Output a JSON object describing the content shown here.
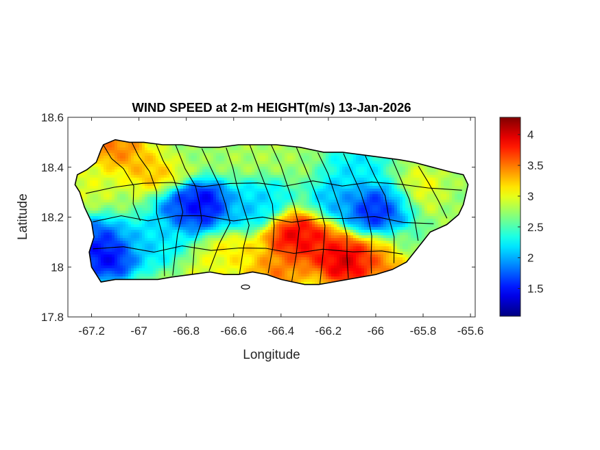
{
  "title": "WIND SPEED at 2-m HEIGHT(m/s) 13-Jan-2026",
  "xlabel": "Longitude",
  "ylabel": "Latitude",
  "xlim": [
    -67.3,
    -65.58
  ],
  "ylim": [
    17.8,
    18.6
  ],
  "x_ticks": [
    "-67.2",
    "-67",
    "-66.8",
    "-66.6",
    "-66.4",
    "-66.2",
    "-66",
    "-65.8",
    "-65.6"
  ],
  "x_tick_values": [
    -67.2,
    -67.0,
    -66.8,
    -66.6,
    -66.4,
    -66.2,
    -66.0,
    -65.8,
    -65.6
  ],
  "y_ticks": [
    "18.6",
    "18.4",
    "18.2",
    "18",
    "17.8"
  ],
  "y_tick_values": [
    18.6,
    18.4,
    18.2,
    18.0,
    17.8
  ],
  "colorbar": {
    "colormap": "jet",
    "range": [
      1.05,
      4.28
    ],
    "ticks": [
      "4",
      "3.5",
      "3",
      "2.5",
      "2",
      "1.5"
    ],
    "tick_values": [
      4.0,
      3.5,
      3.0,
      2.5,
      2.0,
      1.5
    ]
  },
  "chart_data": {
    "type": "heatmap",
    "title": "WIND SPEED at 2-m HEIGHT(m/s) 13-Jan-2026",
    "xlabel": "Longitude",
    "ylabel": "Latitude",
    "xlim": [
      -67.3,
      -65.58
    ],
    "ylim": [
      17.8,
      18.6
    ],
    "grid": false,
    "baseline_value": 2.75,
    "features": [
      {
        "lon": -67.13,
        "lat": 18.04,
        "value": 1.2
      },
      {
        "lon": -67.18,
        "lat": 18.1,
        "value": 1.5
      },
      {
        "lon": -66.98,
        "lat": 18.1,
        "value": 2.0
      },
      {
        "lon": -66.73,
        "lat": 18.25,
        "value": 1.15
      },
      {
        "lon": -66.8,
        "lat": 18.22,
        "value": 1.6
      },
      {
        "lon": -66.55,
        "lat": 18.22,
        "value": 2.0
      },
      {
        "lon": -66.48,
        "lat": 18.27,
        "value": 2.1
      },
      {
        "lon": -66.0,
        "lat": 18.23,
        "value": 1.3
      },
      {
        "lon": -65.92,
        "lat": 18.24,
        "value": 1.6
      },
      {
        "lon": -66.15,
        "lat": 18.27,
        "value": 1.9
      },
      {
        "lon": -66.08,
        "lat": 18.4,
        "value": 2.1
      },
      {
        "lon": -66.35,
        "lat": 18.13,
        "value": 4.1
      },
      {
        "lon": -66.26,
        "lat": 18.09,
        "value": 3.9
      },
      {
        "lon": -66.12,
        "lat": 18.02,
        "value": 4.25
      },
      {
        "lon": -65.98,
        "lat": 18.02,
        "value": 3.6
      },
      {
        "lon": -66.42,
        "lat": 17.98,
        "value": 3.6
      },
      {
        "lon": -66.58,
        "lat": 18.06,
        "value": 3.2
      },
      {
        "lon": -66.68,
        "lat": 18.0,
        "value": 3.0
      },
      {
        "lon": -67.1,
        "lat": 18.48,
        "value": 3.6
      },
      {
        "lon": -66.93,
        "lat": 18.4,
        "value": 3.4
      },
      {
        "lon": -66.83,
        "lat": 18.46,
        "value": 2.7
      },
      {
        "lon": -67.22,
        "lat": 18.35,
        "value": 3.0
      },
      {
        "lon": -66.9,
        "lat": 18.1,
        "value": 2.2
      },
      {
        "lon": -65.82,
        "lat": 18.28,
        "value": 3.3
      },
      {
        "lon": -65.7,
        "lat": 18.26,
        "value": 2.7
      },
      {
        "lon": -65.85,
        "lat": 18.1,
        "value": 2.6
      },
      {
        "lon": -66.5,
        "lat": 18.45,
        "value": 2.8
      }
    ]
  }
}
